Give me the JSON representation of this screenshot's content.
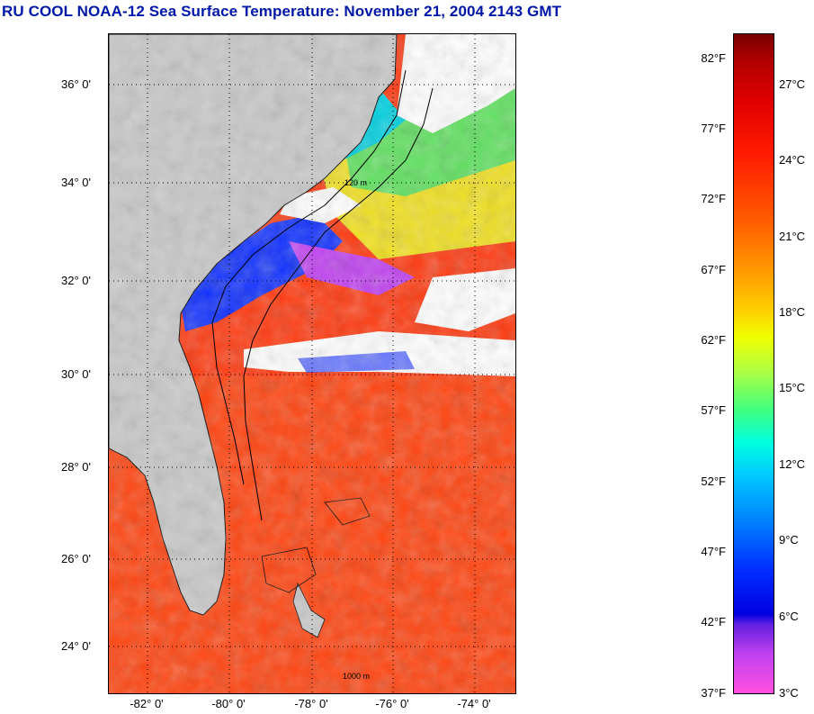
{
  "title": "RU COOL  NOAA-12  Sea Surface Temperature:  November 21, 2004 2143 GMT",
  "map": {
    "latitude_labels": [
      "36° 0'",
      "34° 0'",
      "32° 0'",
      "30° 0'",
      "28° 0'",
      "26° 0'",
      "24° 0'"
    ],
    "longitude_labels": [
      "-82° 0'",
      "-80° 0'",
      "-78° 0'",
      "-76° 0'",
      "-74° 0'"
    ],
    "contour_labels": [
      "120 m",
      "1000 m"
    ]
  },
  "colorbar": {
    "fahrenheit_labels": [
      "82°F",
      "77°F",
      "72°F",
      "67°F",
      "62°F",
      "57°F",
      "52°F",
      "47°F",
      "42°F",
      "37°F"
    ],
    "celsius_labels": [
      "27°C",
      "24°C",
      "21°C",
      "18°C",
      "15°C",
      "12°C",
      "9°C",
      "6°C",
      "3°C"
    ]
  },
  "colors": {
    "title": "#0018a8",
    "land": "#c8c8c8",
    "warm_water": "#ff3a10",
    "cloud": "#ffffff"
  }
}
